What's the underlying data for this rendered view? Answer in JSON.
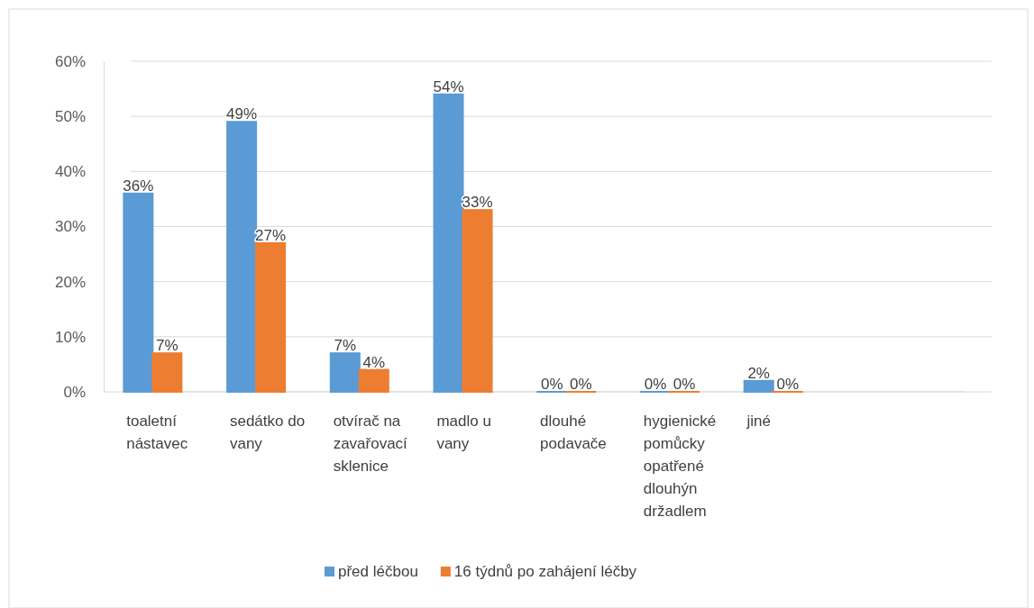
{
  "chart_data": {
    "type": "bar",
    "categories": [
      "toaletní nástavec",
      "sedátko do vany",
      "otvírač na zavařovací sklenice",
      "madlo u vany",
      "dlouhé podavače",
      "hygienické pomůcky opatřené dlouhýn držadlem",
      "jiné"
    ],
    "series": [
      {
        "name": "před léčbou",
        "color": "#5b9bd5",
        "values": [
          36,
          49,
          7,
          54,
          0,
          0,
          2
        ],
        "value_labels": [
          "36%",
          "49%",
          "7%",
          "54%",
          "0%",
          "0%",
          "2%"
        ]
      },
      {
        "name": "16 týdnů po zahájení léčby",
        "color": "#ed7d31",
        "values": [
          7,
          27,
          4,
          33,
          0,
          0,
          0
        ],
        "value_labels": [
          "7%",
          "27%",
          "4%",
          "33%",
          "0%",
          "0%",
          "0%"
        ]
      }
    ],
    "ylim": [
      0,
      60
    ],
    "yticks": [
      {
        "value": 0,
        "label": "0%"
      },
      {
        "value": 10,
        "label": "10%"
      },
      {
        "value": 20,
        "label": "20%"
      },
      {
        "value": 30,
        "label": "30%"
      },
      {
        "value": 40,
        "label": "40%"
      },
      {
        "value": 50,
        "label": "50%"
      },
      {
        "value": 60,
        "label": "60%"
      }
    ],
    "grid": "y",
    "legend": "bottom"
  }
}
